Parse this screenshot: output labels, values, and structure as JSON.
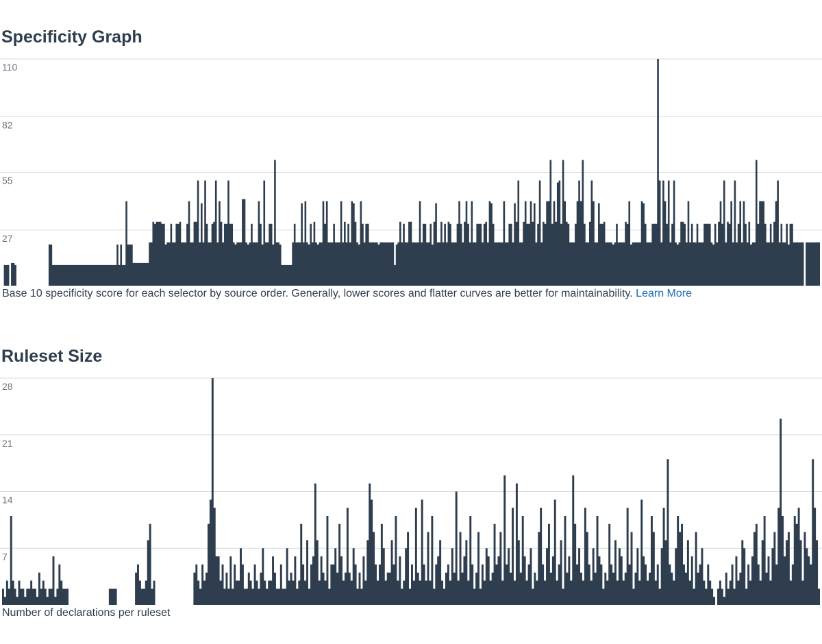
{
  "colors": {
    "bars": "#2f3e4e",
    "link": "#1a6fb5",
    "gridline": "#d7dadd",
    "tick_text": "#6b7680"
  },
  "chart_data": [
    {
      "type": "bar",
      "title": "Specificity Graph",
      "caption": "Base 10 specificity score for each selector by source order. Generally, lower scores and flatter curves are better for maintainability.",
      "link_text": "Learn More",
      "yticks": [
        27,
        55,
        82,
        110
      ],
      "ylim": [
        0,
        110
      ],
      "grid": true,
      "values": [
        0,
        10,
        10,
        10,
        0,
        11,
        11,
        10,
        0,
        0,
        0,
        0,
        0,
        0,
        0,
        0,
        0,
        0,
        0,
        0,
        0,
        0,
        0,
        0,
        0,
        0,
        20,
        20,
        10,
        10,
        10,
        10,
        10,
        10,
        10,
        10,
        10,
        10,
        10,
        10,
        10,
        10,
        10,
        10,
        10,
        10,
        10,
        10,
        10,
        10,
        10,
        10,
        10,
        10,
        10,
        10,
        10,
        10,
        10,
        10,
        10,
        10,
        10,
        10,
        20,
        10,
        20,
        10,
        10,
        41,
        20,
        20,
        20,
        11,
        11,
        11,
        11,
        11,
        11,
        11,
        11,
        11,
        21,
        21,
        31,
        30,
        31,
        31,
        31,
        30,
        30,
        20,
        21,
        21,
        30,
        21,
        21,
        30,
        30,
        31,
        21,
        21,
        21,
        30,
        41,
        21,
        21,
        31,
        31,
        51,
        21,
        40,
        21,
        51,
        30,
        21,
        21,
        30,
        31,
        51,
        21,
        41,
        31,
        21,
        30,
        30,
        51,
        30,
        30,
        21,
        20,
        21,
        21,
        21,
        42,
        42,
        21,
        20,
        21,
        30,
        21,
        21,
        21,
        41,
        30,
        20,
        51,
        21,
        21,
        30,
        30,
        20,
        61,
        21,
        21,
        20,
        10,
        10,
        10,
        10,
        10,
        10,
        21,
        30,
        21,
        21,
        21,
        40,
        21,
        41,
        21,
        20,
        30,
        21,
        31,
        21,
        20,
        21,
        21,
        41,
        30,
        41,
        21,
        21,
        21,
        30,
        21,
        21,
        21,
        41,
        21,
        31,
        21,
        30,
        21,
        41,
        40,
        31,
        21,
        20,
        41,
        30,
        21,
        30,
        30,
        21,
        21,
        21,
        21,
        21,
        20,
        21,
        21,
        21,
        21,
        21,
        21,
        21,
        21,
        10,
        20,
        21,
        31,
        21,
        30,
        21,
        21,
        31,
        31,
        21,
        21,
        21,
        21,
        41,
        21,
        30,
        30,
        21,
        21,
        30,
        20,
        31,
        40,
        21,
        21,
        31,
        21,
        30,
        21,
        31,
        30,
        21,
        21,
        21,
        30,
        41,
        30,
        21,
        31,
        41,
        30,
        21,
        41,
        21,
        21,
        30,
        30,
        30,
        21,
        30,
        31,
        21,
        41,
        40,
        30,
        21,
        21,
        21,
        21,
        21,
        41,
        21,
        21,
        30,
        30,
        21,
        40,
        31,
        51,
        21,
        21,
        31,
        41,
        30,
        30,
        41,
        31,
        40,
        21,
        30,
        51,
        21,
        31,
        30,
        41,
        41,
        61,
        30,
        41,
        31,
        50,
        51,
        30,
        61,
        41,
        31,
        30,
        21,
        21,
        21,
        30,
        41,
        51,
        41,
        61,
        30,
        21,
        21,
        31,
        51,
        41,
        21,
        21,
        40,
        30,
        30,
        31,
        21,
        21,
        21,
        21,
        20,
        21,
        30,
        21,
        21,
        21,
        21,
        31,
        30,
        41,
        20,
        21,
        21,
        21,
        21,
        21,
        41,
        40,
        30,
        21,
        21,
        21,
        30,
        30,
        30,
        110,
        51,
        21,
        51,
        41,
        30,
        51,
        21,
        30,
        51,
        21,
        20,
        21,
        31,
        31,
        30,
        21,
        41,
        21,
        30,
        21,
        21,
        30,
        21,
        21,
        21,
        30,
        30,
        30,
        30,
        21,
        20,
        30,
        21,
        31,
        41,
        30,
        51,
        21,
        31,
        30,
        41,
        21,
        51,
        21,
        30,
        41,
        21,
        41,
        30,
        21,
        31,
        20,
        21,
        21,
        61,
        30,
        41,
        41,
        41,
        30,
        21,
        21,
        30,
        21,
        31,
        41,
        51,
        21,
        30,
        21,
        21,
        30,
        20,
        30,
        30,
        21,
        21,
        21,
        21,
        21,
        21,
        0,
        21,
        21,
        21,
        21,
        21,
        21,
        21,
        21
      ]
    },
    {
      "type": "bar",
      "title": "Ruleset Size",
      "caption": "Number of declarations per ruleset",
      "yticks": [
        7,
        14,
        21,
        28
      ],
      "ylim": [
        0,
        28
      ],
      "grid": true,
      "values": [
        2,
        1,
        3,
        2,
        11,
        3,
        2,
        1,
        3,
        2,
        2,
        1,
        2,
        2,
        3,
        2,
        2,
        1,
        4,
        2,
        3,
        2,
        1,
        2,
        2,
        6,
        1,
        2,
        5,
        3,
        2,
        2,
        2,
        0,
        0,
        0,
        0,
        0,
        0,
        0,
        0,
        0,
        0,
        0,
        0,
        0,
        0,
        0,
        0,
        0,
        0,
        0,
        0,
        2,
        2,
        2,
        2,
        0,
        0,
        0,
        0,
        0,
        0,
        0,
        0,
        0,
        4,
        5,
        3,
        2,
        2,
        3,
        8,
        10,
        2,
        3,
        0,
        0,
        0,
        0,
        0,
        0,
        0,
        0,
        0,
        0,
        0,
        0,
        0,
        0,
        0,
        0,
        0,
        0,
        0,
        4,
        5,
        3,
        2,
        5,
        3,
        4,
        10,
        13,
        28,
        12,
        6,
        6,
        3,
        5,
        2,
        4,
        2,
        6,
        2,
        5,
        3,
        3,
        7,
        5,
        2,
        2,
        4,
        3,
        2,
        5,
        3,
        2,
        4,
        7,
        3,
        2,
        3,
        3,
        6,
        4,
        2,
        2,
        5,
        2,
        2,
        7,
        3,
        4,
        3,
        6,
        2,
        3,
        10,
        5,
        3,
        8,
        2,
        5,
        6,
        15,
        8,
        3,
        6,
        4,
        3,
        11,
        2,
        5,
        5,
        7,
        4,
        10,
        6,
        3,
        4,
        12,
        4,
        3,
        7,
        5,
        2,
        4,
        2,
        6,
        3,
        8,
        15,
        13,
        9,
        5,
        3,
        5,
        10,
        7,
        3,
        4,
        4,
        8,
        5,
        11,
        3,
        6,
        2,
        3,
        7,
        9,
        2,
        5,
        3,
        12,
        4,
        3,
        13,
        5,
        3,
        9,
        3,
        11,
        2,
        5,
        6,
        8,
        3,
        2,
        4,
        5,
        3,
        7,
        4,
        14,
        3,
        9,
        4,
        6,
        8,
        3,
        11,
        5,
        2,
        4,
        9,
        2,
        5,
        3,
        7,
        6,
        3,
        4,
        10,
        5,
        6,
        9,
        3,
        16,
        5,
        7,
        4,
        12,
        3,
        15,
        8,
        4,
        11,
        6,
        3,
        5,
        7,
        2,
        4,
        3,
        9,
        12,
        5,
        3,
        7,
        10,
        4,
        6,
        13,
        3,
        5,
        8,
        2,
        11,
        4,
        6,
        3,
        16,
        10,
        5,
        7,
        4,
        3,
        12,
        9,
        5,
        3,
        7,
        4,
        11,
        6,
        5,
        2,
        4,
        3,
        10,
        5,
        4,
        8,
        3,
        7,
        6,
        3,
        4,
        12,
        5,
        9,
        2,
        4,
        7,
        3,
        13,
        6,
        5,
        3,
        4,
        11,
        9,
        3,
        5,
        2,
        7,
        12,
        8,
        18,
        5,
        4,
        3,
        7,
        11,
        9,
        10,
        5,
        4,
        8,
        3,
        6,
        2,
        9,
        4,
        5,
        7,
        3,
        2,
        5,
        3,
        2,
        1,
        0,
        2,
        3,
        2,
        1,
        4,
        2,
        3,
        5,
        2,
        6,
        3,
        4,
        8,
        7,
        2,
        5,
        3,
        6,
        9,
        10,
        5,
        3,
        8,
        11,
        4,
        6,
        3,
        7,
        9,
        5,
        12,
        23,
        11,
        6,
        8,
        9,
        3,
        5,
        11,
        10,
        12,
        8,
        3,
        9,
        7,
        6,
        5,
        18,
        12,
        8,
        2
      ]
    }
  ]
}
